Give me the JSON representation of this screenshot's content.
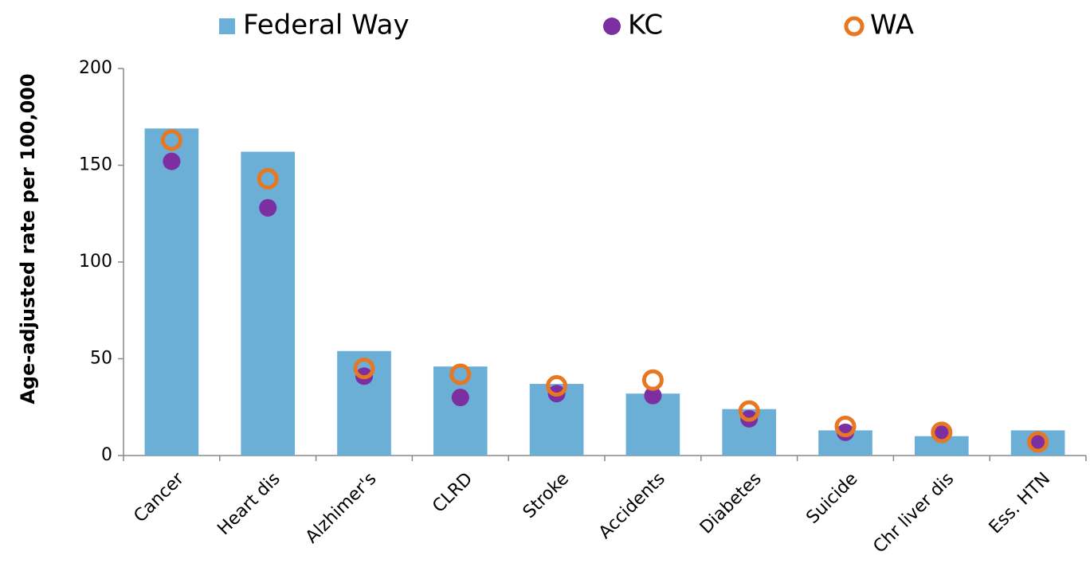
{
  "chart_data": {
    "type": "bar",
    "y_label": "Age-adjusted rate per 100,000",
    "categories": [
      "Cancer",
      "Heart dis",
      "Alzhimer's",
      "CLRD",
      "Stroke",
      "Accidents",
      "Diabetes",
      "Suicide",
      "Chr liver dis",
      "Ess. HTN"
    ],
    "series": [
      {
        "name": "Federal Way",
        "color": "#6baed6",
        "marker": "bar",
        "values": [
          169,
          157,
          54,
          46,
          37,
          32,
          24,
          13,
          10,
          13
        ]
      },
      {
        "name": "KC",
        "color": "#7b2fa0",
        "marker": "dot",
        "values": [
          152,
          128,
          41,
          30,
          32,
          31,
          19,
          12,
          11,
          8
        ]
      },
      {
        "name": "WA",
        "color": "#e87722",
        "marker": "ring",
        "values": [
          163,
          143,
          45,
          42,
          36,
          39,
          23,
          15,
          12,
          7
        ]
      }
    ],
    "ylim": [
      0,
      200
    ],
    "yticks": [
      0,
      50,
      100,
      150,
      200
    ],
    "grid": false
  }
}
